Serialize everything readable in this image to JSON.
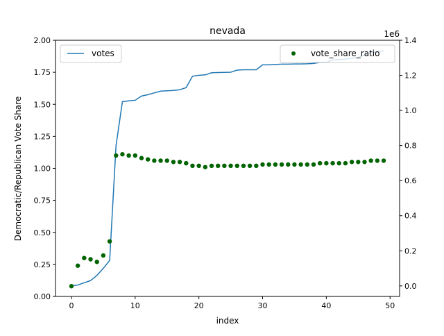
{
  "chart_data": {
    "type": "line+scatter",
    "title": "nevada",
    "xlabel": "index",
    "ylabel_left": "Democratic/Republican Vote Share",
    "ylabel_right": "",
    "right_axis_offset_label": "1e6",
    "xlim": [
      -2.5,
      51.5
    ],
    "ylim_left": [
      0.0,
      2.0
    ],
    "ylim_right": [
      -0.06,
      1.4
    ],
    "x_ticks": [
      0,
      10,
      20,
      30,
      40,
      50
    ],
    "x_tick_labels": [
      "0",
      "10",
      "20",
      "30",
      "40",
      "50"
    ],
    "y_left_ticks": [
      0.0,
      0.25,
      0.5,
      0.75,
      1.0,
      1.25,
      1.5,
      1.75,
      2.0
    ],
    "y_left_tick_labels": [
      "0.00",
      "0.25",
      "0.50",
      "0.75",
      "1.00",
      "1.25",
      "1.50",
      "1.75",
      "2.00"
    ],
    "y_right_ticks": [
      0.0,
      0.2,
      0.4,
      0.6,
      0.8,
      1.0,
      1.2,
      1.4
    ],
    "y_right_tick_labels": [
      "0.0",
      "0.2",
      "0.4",
      "0.6",
      "0.8",
      "1.0",
      "1.2",
      "1.4"
    ],
    "legend_left": {
      "position": "top-left",
      "label": "votes"
    },
    "legend_right": {
      "position": "top-right",
      "label": "vote_share_ratio"
    },
    "grid": false,
    "series": [
      {
        "name": "votes",
        "axis": "right",
        "kind": "line",
        "color": "#1f77b4",
        "x": [
          0,
          1,
          2,
          3,
          4,
          5,
          6,
          7,
          8,
          9,
          10,
          11,
          12,
          13,
          14,
          15,
          16,
          17,
          18,
          19,
          20,
          21,
          22,
          23,
          24,
          25,
          26,
          27,
          28,
          29,
          30,
          31,
          32,
          33,
          34,
          35,
          36,
          37,
          38,
          39,
          40,
          41,
          42,
          43,
          44,
          45,
          46,
          47,
          48,
          49
        ],
        "values": [
          0.0,
          0.005,
          0.018,
          0.03,
          0.06,
          0.1,
          0.145,
          0.8,
          1.05,
          1.055,
          1.058,
          1.082,
          1.09,
          1.1,
          1.11,
          1.112,
          1.114,
          1.118,
          1.13,
          1.195,
          1.2,
          1.203,
          1.215,
          1.216,
          1.217,
          1.218,
          1.23,
          1.232,
          1.232,
          1.232,
          1.26,
          1.26,
          1.262,
          1.264,
          1.264,
          1.265,
          1.265,
          1.266,
          1.268,
          1.274,
          1.274,
          1.288,
          1.29,
          1.292,
          1.298,
          1.302,
          1.315,
          1.33,
          1.335,
          1.34
        ]
      },
      {
        "name": "vote_share_ratio",
        "axis": "left",
        "kind": "scatter",
        "color": "#006400",
        "x": [
          0,
          1,
          2,
          3,
          4,
          5,
          6,
          7,
          8,
          9,
          10,
          11,
          12,
          13,
          14,
          15,
          16,
          17,
          18,
          19,
          20,
          21,
          22,
          23,
          24,
          25,
          26,
          27,
          28,
          29,
          30,
          31,
          32,
          33,
          34,
          35,
          36,
          37,
          38,
          39,
          40,
          41,
          42,
          43,
          44,
          45,
          46,
          47,
          48,
          49
        ],
        "values": [
          0.08,
          0.24,
          0.3,
          0.29,
          0.27,
          0.32,
          0.43,
          1.1,
          1.11,
          1.1,
          1.1,
          1.08,
          1.07,
          1.06,
          1.06,
          1.06,
          1.05,
          1.05,
          1.04,
          1.02,
          1.02,
          1.01,
          1.02,
          1.02,
          1.02,
          1.02,
          1.02,
          1.02,
          1.02,
          1.02,
          1.03,
          1.03,
          1.03,
          1.03,
          1.03,
          1.03,
          1.03,
          1.03,
          1.03,
          1.04,
          1.04,
          1.04,
          1.04,
          1.04,
          1.05,
          1.05,
          1.05,
          1.06,
          1.06,
          1.06
        ]
      }
    ]
  }
}
